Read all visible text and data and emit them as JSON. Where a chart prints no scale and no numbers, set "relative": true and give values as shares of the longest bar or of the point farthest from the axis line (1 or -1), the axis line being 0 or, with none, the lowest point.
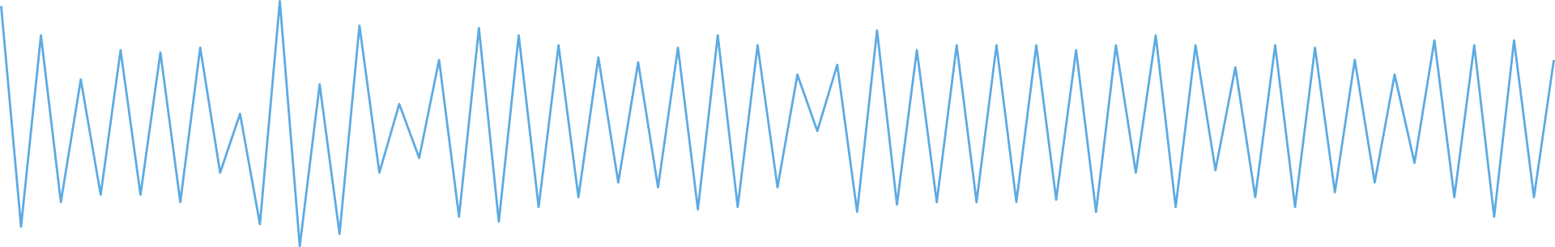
{
  "chart_data": {
    "type": "line",
    "relative": true,
    "color": "#5dabe2",
    "categories": [
      null,
      null,
      null,
      null,
      null,
      null,
      null,
      null,
      null,
      null,
      null,
      null,
      null,
      null,
      null,
      null,
      null,
      null,
      null,
      null,
      null,
      null,
      null,
      null,
      null,
      null,
      null,
      null,
      null,
      null,
      null,
      null,
      null,
      null,
      null,
      null,
      null,
      null,
      null,
      null,
      null,
      null,
      null,
      null,
      null,
      null,
      null,
      null,
      null,
      null,
      null,
      null,
      null,
      null,
      null,
      null,
      null,
      null,
      null,
      null,
      null,
      null,
      null,
      null,
      null,
      null,
      null,
      null,
      null,
      null,
      null,
      null,
      null,
      null,
      null,
      null,
      null,
      null,
      null
    ],
    "values": [
      0.98,
      0.08,
      0.86,
      0.18,
      0.68,
      0.21,
      0.8,
      0.21,
      0.79,
      0.18,
      0.81,
      0.3,
      0.54,
      0.09,
      1.0,
      0.0,
      0.66,
      0.05,
      0.9,
      0.3,
      0.58,
      0.36,
      0.76,
      0.12,
      0.89,
      0.1,
      0.86,
      0.16,
      0.82,
      0.2,
      0.77,
      0.26,
      0.75,
      0.24,
      0.81,
      0.15,
      0.86,
      0.16,
      0.82,
      0.24,
      0.7,
      0.47,
      0.74,
      0.14,
      0.88,
      0.17,
      0.8,
      0.18,
      0.82,
      0.18,
      0.82,
      0.18,
      0.82,
      0.19,
      0.8,
      0.14,
      0.82,
      0.3,
      0.86,
      0.16,
      0.82,
      0.31,
      0.73,
      0.2,
      0.82,
      0.16,
      0.81,
      0.22,
      0.76,
      0.26,
      0.7,
      0.34,
      0.84,
      0.2,
      0.82,
      0.12,
      0.84,
      0.2,
      0.76
    ]
  }
}
